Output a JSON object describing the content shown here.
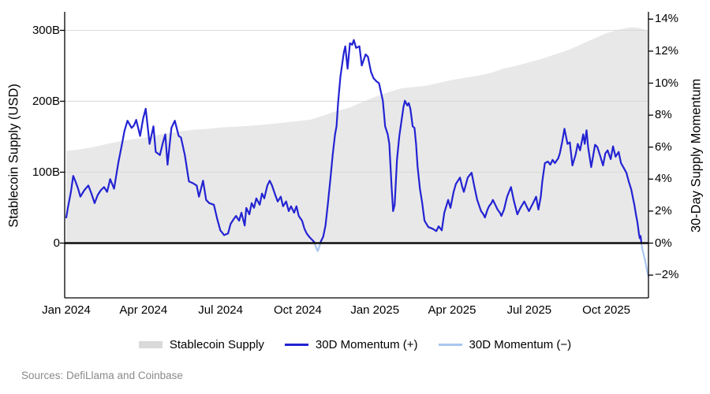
{
  "footer": {
    "sources": "Sources: DefiLlama and Coinbase"
  },
  "legend": [
    {
      "label": "Stablecoin Supply",
      "swatch": "area"
    },
    {
      "label": "30D Momentum (+)",
      "swatch": "line_pos"
    },
    {
      "label": "30D Momentum (−)",
      "swatch": "line_neg"
    }
  ],
  "colors": {
    "background": "#ffffff",
    "supply_area": "#e8e8e8",
    "legend_area_swatch": "#d9d9d9",
    "grid": "#d9d9d9",
    "momentum_pos": "#2323d3",
    "momentum_neg": "#a9c6f0",
    "zero_line": "#0d0d0d",
    "axis_line": "#000000",
    "muted_text": "#8a8a8a"
  },
  "chart_data": {
    "type": "combo",
    "x_unit": "months_since_jan_2024",
    "axes": {
      "left": {
        "title": "Stablecoin Supply (USD)",
        "units": "billions USD",
        "range_shown": [
          0,
          325
        ],
        "ticks": [
          {
            "label": "0",
            "value": 0
          },
          {
            "label": "100B",
            "value": 100
          },
          {
            "label": "200B",
            "value": 200
          },
          {
            "label": "300B",
            "value": 300
          }
        ]
      },
      "right": {
        "title": "30-Day Supply Momentum",
        "units": "percent",
        "range_shown": [
          -3.4,
          14.5
        ],
        "ticks": [
          {
            "label": "14%",
            "value": 14
          },
          {
            "label": "12%",
            "value": 12
          },
          {
            "label": "10%",
            "value": 10
          },
          {
            "label": "8%",
            "value": 8
          },
          {
            "label": "6%",
            "value": 6
          },
          {
            "label": "4%",
            "value": 4
          },
          {
            "label": "2%",
            "value": 2
          },
          {
            "label": "0%",
            "value": 0
          },
          {
            "label": "−2%",
            "value": -2
          }
        ]
      },
      "x": {
        "ticks": [
          {
            "label": "Jan 2024",
            "value": 0
          },
          {
            "label": "Apr 2024",
            "value": 3
          },
          {
            "label": "Jul 2024",
            "value": 6
          },
          {
            "label": "Oct 2024",
            "value": 9
          },
          {
            "label": "Jan 2025",
            "value": 12
          },
          {
            "label": "Apr 2025",
            "value": 15
          },
          {
            "label": "Jul 2025",
            "value": 18
          },
          {
            "label": "Oct 2025",
            "value": 21
          }
        ]
      }
    },
    "series": [
      {
        "name": "Stablecoin Supply",
        "type": "area",
        "axis": "left",
        "points": [
          [
            0,
            130
          ],
          [
            0.5,
            132
          ],
          [
            1,
            135
          ],
          [
            1.5,
            139
          ],
          [
            2,
            143
          ],
          [
            2.5,
            146
          ],
          [
            3,
            148
          ],
          [
            3.5,
            152
          ],
          [
            4,
            155
          ],
          [
            4.5,
            158
          ],
          [
            5,
            160
          ],
          [
            5.5,
            161
          ],
          [
            6,
            163
          ],
          [
            6.5,
            164
          ],
          [
            7,
            165
          ],
          [
            7.5,
            166.5
          ],
          [
            8,
            168
          ],
          [
            8.5,
            170
          ],
          [
            9,
            172
          ],
          [
            9.5,
            174
          ],
          [
            10,
            180
          ],
          [
            10.5,
            186
          ],
          [
            11,
            191
          ],
          [
            11.33,
            196
          ],
          [
            11.66,
            201
          ],
          [
            12,
            206
          ],
          [
            12.56,
            213
          ],
          [
            13,
            218
          ],
          [
            13.5,
            220
          ],
          [
            14,
            222
          ],
          [
            14.5,
            226
          ],
          [
            15,
            230
          ],
          [
            15.5,
            233
          ],
          [
            16,
            236
          ],
          [
            16.5,
            240
          ],
          [
            17,
            246
          ],
          [
            17.5,
            250
          ],
          [
            18,
            255
          ],
          [
            18.5,
            260
          ],
          [
            19,
            266
          ],
          [
            19.5,
            272
          ],
          [
            20,
            280
          ],
          [
            20.5,
            288
          ],
          [
            21,
            296
          ],
          [
            21.3,
            299
          ],
          [
            21.6,
            302
          ],
          [
            21.9,
            304
          ],
          [
            22.1,
            304
          ],
          [
            22.3,
            303
          ],
          [
            22.5,
            301
          ],
          [
            22.64,
            299
          ]
        ]
      },
      {
        "name": "30D Momentum",
        "type": "line",
        "axis": "right",
        "points": [
          [
            0.0,
            1.6
          ],
          [
            0.06,
            2.2
          ],
          [
            0.18,
            3.2
          ],
          [
            0.27,
            4.2
          ],
          [
            0.37,
            3.8
          ],
          [
            0.46,
            3.4
          ],
          [
            0.55,
            2.9
          ],
          [
            0.7,
            3.3
          ],
          [
            0.86,
            3.6
          ],
          [
            0.98,
            3.1
          ],
          [
            1.1,
            2.5
          ],
          [
            1.22,
            3.0
          ],
          [
            1.34,
            3.3
          ],
          [
            1.47,
            3.5
          ],
          [
            1.59,
            3.2
          ],
          [
            1.71,
            4.0
          ],
          [
            1.86,
            3.4
          ],
          [
            2.02,
            5.0
          ],
          [
            2.17,
            6.2
          ],
          [
            2.26,
            7.0
          ],
          [
            2.38,
            7.65
          ],
          [
            2.54,
            7.2
          ],
          [
            2.63,
            7.35
          ],
          [
            2.72,
            7.7
          ],
          [
            2.87,
            6.7
          ],
          [
            2.99,
            7.8
          ],
          [
            3.09,
            8.4
          ],
          [
            3.24,
            6.2
          ],
          [
            3.39,
            7.3
          ],
          [
            3.48,
            5.7
          ],
          [
            3.64,
            5.5
          ],
          [
            3.76,
            6.3
          ],
          [
            3.85,
            6.8
          ],
          [
            3.94,
            4.9
          ],
          [
            4.09,
            7.2
          ],
          [
            4.22,
            7.65
          ],
          [
            4.37,
            6.7
          ],
          [
            4.46,
            6.6
          ],
          [
            4.61,
            5.5
          ],
          [
            4.77,
            3.85
          ],
          [
            4.92,
            3.75
          ],
          [
            5.07,
            3.6
          ],
          [
            5.16,
            2.9
          ],
          [
            5.32,
            3.9
          ],
          [
            5.44,
            2.7
          ],
          [
            5.56,
            2.5
          ],
          [
            5.74,
            2.4
          ],
          [
            5.87,
            1.5
          ],
          [
            5.99,
            0.8
          ],
          [
            6.14,
            0.5
          ],
          [
            6.29,
            0.6
          ],
          [
            6.39,
            1.2
          ],
          [
            6.51,
            1.5
          ],
          [
            6.6,
            1.7
          ],
          [
            6.72,
            1.4
          ],
          [
            6.81,
            1.9
          ],
          [
            6.94,
            1.1
          ],
          [
            7.0,
            2.2
          ],
          [
            7.12,
            1.8
          ],
          [
            7.21,
            2.5
          ],
          [
            7.3,
            2.2
          ],
          [
            7.39,
            2.8
          ],
          [
            7.52,
            2.4
          ],
          [
            7.61,
            3.1
          ],
          [
            7.7,
            2.8
          ],
          [
            7.82,
            3.6
          ],
          [
            7.91,
            3.9
          ],
          [
            8.0,
            3.6
          ],
          [
            8.13,
            3.0
          ],
          [
            8.22,
            2.6
          ],
          [
            8.34,
            2.9
          ],
          [
            8.43,
            2.3
          ],
          [
            8.55,
            2.6
          ],
          [
            8.65,
            2.0
          ],
          [
            8.74,
            2.3
          ],
          [
            8.86,
            1.9
          ],
          [
            8.95,
            2.3
          ],
          [
            9.04,
            1.7
          ],
          [
            9.17,
            1.4
          ],
          [
            9.26,
            0.9
          ],
          [
            9.35,
            0.6
          ],
          [
            9.47,
            0.35
          ],
          [
            9.56,
            0.2
          ],
          [
            9.65,
            0.05
          ],
          [
            9.72,
            -0.3
          ],
          [
            9.78,
            -0.5
          ],
          [
            9.84,
            -0.2
          ],
          [
            9.9,
            0.1
          ],
          [
            9.99,
            0.4
          ],
          [
            10.08,
            1.1
          ],
          [
            10.17,
            2.4
          ],
          [
            10.27,
            4.0
          ],
          [
            10.36,
            5.5
          ],
          [
            10.45,
            6.8
          ],
          [
            10.51,
            7.3
          ],
          [
            10.57,
            8.8
          ],
          [
            10.66,
            10.4
          ],
          [
            10.72,
            11.1
          ],
          [
            10.79,
            11.9
          ],
          [
            10.85,
            12.3
          ],
          [
            10.94,
            10.9
          ],
          [
            11.03,
            12.5
          ],
          [
            11.12,
            12.4
          ],
          [
            11.18,
            12.7
          ],
          [
            11.27,
            12.2
          ],
          [
            11.4,
            12.3
          ],
          [
            11.49,
            11.1
          ],
          [
            11.64,
            11.8
          ],
          [
            11.73,
            11.65
          ],
          [
            11.85,
            10.7
          ],
          [
            11.95,
            10.3
          ],
          [
            12.07,
            10.1
          ],
          [
            12.16,
            10.0
          ],
          [
            12.31,
            8.9
          ],
          [
            12.4,
            7.3
          ],
          [
            12.5,
            6.8
          ],
          [
            12.56,
            6.2
          ],
          [
            12.65,
            3.5
          ],
          [
            12.71,
            2.0
          ],
          [
            12.77,
            2.4
          ],
          [
            12.86,
            5.2
          ],
          [
            12.95,
            6.7
          ],
          [
            13.05,
            7.8
          ],
          [
            13.11,
            8.5
          ],
          [
            13.17,
            8.9
          ],
          [
            13.26,
            8.6
          ],
          [
            13.32,
            8.75
          ],
          [
            13.38,
            8.4
          ],
          [
            13.47,
            7.3
          ],
          [
            13.54,
            7.2
          ],
          [
            13.6,
            6.2
          ],
          [
            13.66,
            4.8
          ],
          [
            13.75,
            3.4
          ],
          [
            13.84,
            2.5
          ],
          [
            13.93,
            1.4
          ],
          [
            14.08,
            1.0
          ],
          [
            14.24,
            0.9
          ],
          [
            14.39,
            0.75
          ],
          [
            14.48,
            1.05
          ],
          [
            14.6,
            0.8
          ],
          [
            14.7,
            1.9
          ],
          [
            14.85,
            2.7
          ],
          [
            14.94,
            2.2
          ],
          [
            15.06,
            3.2
          ],
          [
            15.15,
            3.7
          ],
          [
            15.31,
            4.1
          ],
          [
            15.4,
            3.5
          ],
          [
            15.46,
            3.2
          ],
          [
            15.61,
            4.1
          ],
          [
            15.76,
            4.4
          ],
          [
            15.86,
            3.6
          ],
          [
            15.98,
            2.7
          ],
          [
            16.13,
            2.0
          ],
          [
            16.22,
            1.8
          ],
          [
            16.28,
            1.6
          ],
          [
            16.38,
            2.1
          ],
          [
            16.44,
            2.3
          ],
          [
            16.53,
            2.5
          ],
          [
            16.59,
            2.7
          ],
          [
            16.68,
            2.4
          ],
          [
            16.77,
            2.1
          ],
          [
            16.86,
            1.9
          ],
          [
            16.92,
            1.7
          ],
          [
            17.02,
            2.1
          ],
          [
            17.14,
            2.9
          ],
          [
            17.29,
            3.5
          ],
          [
            17.41,
            2.6
          ],
          [
            17.54,
            1.8
          ],
          [
            17.66,
            2.2
          ],
          [
            17.81,
            2.6
          ],
          [
            17.9,
            2.3
          ],
          [
            17.99,
            2.0
          ],
          [
            18.15,
            2.5
          ],
          [
            18.27,
            2.9
          ],
          [
            18.36,
            2.1
          ],
          [
            18.45,
            2.9
          ],
          [
            18.51,
            3.85
          ],
          [
            18.61,
            5.0
          ],
          [
            18.73,
            5.1
          ],
          [
            18.82,
            4.9
          ],
          [
            18.91,
            5.2
          ],
          [
            19.0,
            5.0
          ],
          [
            19.13,
            5.3
          ],
          [
            19.19,
            5.6
          ],
          [
            19.28,
            6.3
          ],
          [
            19.37,
            7.15
          ],
          [
            19.49,
            6.2
          ],
          [
            19.58,
            6.3
          ],
          [
            19.68,
            4.85
          ],
          [
            19.8,
            5.5
          ],
          [
            19.89,
            6.2
          ],
          [
            19.98,
            5.8
          ],
          [
            20.1,
            6.8
          ],
          [
            20.16,
            6.2
          ],
          [
            20.23,
            7.05
          ],
          [
            20.29,
            6.0
          ],
          [
            20.41,
            4.75
          ],
          [
            20.56,
            6.15
          ],
          [
            20.65,
            6.0
          ],
          [
            20.75,
            5.5
          ],
          [
            20.87,
            4.85
          ],
          [
            20.96,
            5.6
          ],
          [
            21.05,
            5.8
          ],
          [
            21.17,
            5.25
          ],
          [
            21.26,
            6.05
          ],
          [
            21.36,
            5.4
          ],
          [
            21.48,
            5.7
          ],
          [
            21.57,
            5.0
          ],
          [
            21.66,
            4.75
          ],
          [
            21.78,
            4.4
          ],
          [
            21.87,
            3.85
          ],
          [
            21.97,
            3.35
          ],
          [
            22.03,
            2.85
          ],
          [
            22.09,
            2.4
          ],
          [
            22.15,
            1.8
          ],
          [
            22.21,
            1.3
          ],
          [
            22.27,
            0.55
          ],
          [
            22.3,
            0.3
          ],
          [
            22.33,
            0.45
          ],
          [
            22.36,
            0.05
          ],
          [
            22.39,
            -0.3
          ],
          [
            22.45,
            -0.7
          ],
          [
            22.52,
            -1.2
          ],
          [
            22.58,
            -1.7
          ],
          [
            22.64,
            -2.1
          ]
        ]
      }
    ],
    "grid": "horizontal-left-axis-ticks",
    "legend_position": "bottom-center"
  }
}
